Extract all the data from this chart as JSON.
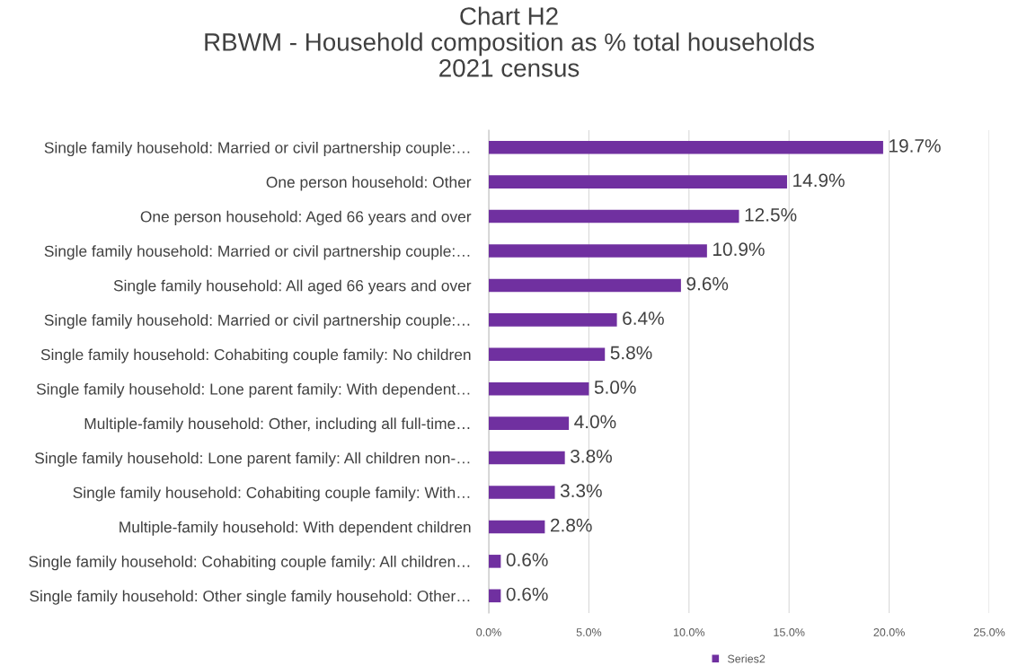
{
  "chart_data": {
    "type": "bar",
    "orientation": "horizontal",
    "title": "Chart H2\nRBWM - Household composition as % total households\n2021 census",
    "categories": [
      "Single family household: Married or civil partnership couple:…",
      "One person household: Other",
      "One person household: Aged 66 years and over",
      "Single family household: Married or civil partnership couple:…",
      "Single family household: All aged 66 years and over",
      "Single family household: Married or civil partnership couple:…",
      "Single family household: Cohabiting couple family: No children",
      "Single family household: Lone parent family: With dependent…",
      "Multiple-family household: Other, including all full-time…",
      "Single family household: Lone parent family: All children non-…",
      "Single family household: Cohabiting couple family: With…",
      "Multiple-family household: With dependent children",
      "Single family household: Cohabiting couple family: All children…",
      "Single family household: Other single family household: Other…"
    ],
    "series": [
      {
        "name": "Series2",
        "color": "#7030a0",
        "values": [
          19.7,
          14.9,
          12.5,
          10.9,
          9.6,
          6.4,
          5.8,
          5.0,
          4.0,
          3.8,
          3.3,
          2.8,
          0.6,
          0.6
        ],
        "value_labels": [
          "19.7%",
          "14.9%",
          "12.5%",
          "10.9%",
          "9.6%",
          "6.4%",
          "5.8%",
          "5.0%",
          "4.0%",
          "3.8%",
          "3.3%",
          "2.8%",
          "0.6%",
          "0.6%"
        ]
      }
    ],
    "xlim": [
      0,
      25
    ],
    "xticks": [
      {
        "value": 0,
        "label": "0.0%"
      },
      {
        "value": 5,
        "label": "5.0%"
      },
      {
        "value": 10,
        "label": "10.0%"
      },
      {
        "value": 15,
        "label": "15.0%"
      },
      {
        "value": 20,
        "label": "20.0%"
      },
      {
        "value": 25,
        "label": "25.0%"
      }
    ],
    "grid": "x",
    "legend": "bottom"
  }
}
